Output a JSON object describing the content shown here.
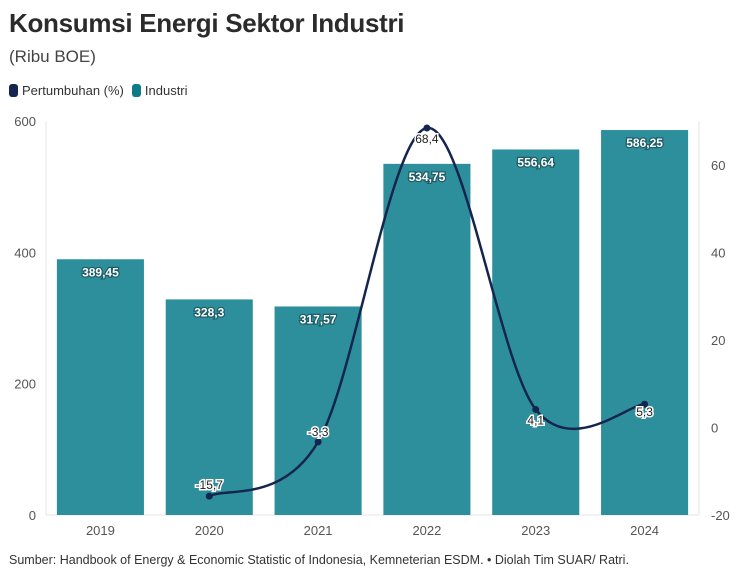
{
  "title": "Konsumsi Energi Sektor Industri",
  "subtitle": "(Ribu BOE)",
  "source": "Sumber: Handbook of Energy & Economic Statistic of Indonesia, Kemneterian ESDM. • Diolah Tim SUAR/ Ratri.",
  "chart_data": {
    "type": "bar",
    "categories": [
      "2019",
      "2020",
      "2021",
      "2022",
      "2023",
      "2024"
    ],
    "series": [
      {
        "name": "Industri",
        "type": "bar",
        "axis": "left",
        "color": "#2e8f9c",
        "values": [
          389.45,
          328.3,
          317.57,
          534.75,
          556.64,
          586.25
        ],
        "labels": [
          "389,45",
          "328,3",
          "317,57",
          "534,75",
          "556,64",
          "586,25"
        ]
      },
      {
        "name": "Pertumbuhan (%)",
        "type": "line",
        "axis": "right",
        "color": "#14254f",
        "values": [
          null,
          -15.7,
          -3.3,
          68.4,
          4.1,
          5.3
        ],
        "labels": [
          "",
          "-15,7",
          "-3,3",
          "68,4",
          "4,1",
          "5,3"
        ]
      }
    ],
    "left_axis": {
      "ylim": [
        0,
        600
      ],
      "ticks": [
        "0",
        "200",
        "400",
        "600"
      ]
    },
    "right_axis": {
      "ylim": [
        -20,
        70
      ],
      "ticks": [
        "-20",
        "0",
        "20",
        "40",
        "60"
      ]
    },
    "legend_position": "top-left",
    "grid": false
  }
}
